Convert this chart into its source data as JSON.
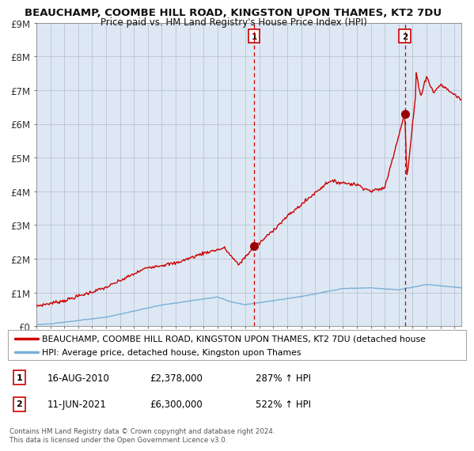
{
  "title": "BEAUCHAMP, COOMBE HILL ROAD, KINGSTON UPON THAMES, KT2 7DU",
  "subtitle": "Price paid vs. HM Land Registry's House Price Index (HPI)",
  "ylim": [
    0,
    9000000
  ],
  "yticks": [
    0,
    1000000,
    2000000,
    3000000,
    4000000,
    5000000,
    6000000,
    7000000,
    8000000,
    9000000
  ],
  "ytick_labels": [
    "£0",
    "£1M",
    "£2M",
    "£3M",
    "£4M",
    "£5M",
    "£6M",
    "£7M",
    "£8M",
    "£9M"
  ],
  "xmin": 1995,
  "xmax": 2025.5,
  "background_color": "#ffffff",
  "plot_bg_color": "#dde8f4",
  "grid_color": "#b0b8c8",
  "hpi_line_color": "#7ab0d8",
  "price_line_color": "#cc0000",
  "marker_color": "#990000",
  "vline_color": "#cc0000",
  "sale1_x": 2010.62,
  "sale1_y": 2378000,
  "sale2_x": 2021.44,
  "sale2_y": 6300000,
  "legend_price_label": "BEAUCHAMP, COOMBE HILL ROAD, KINGSTON UPON THAMES, KT2 7DU (detached house",
  "legend_hpi_label": "HPI: Average price, detached house, Kingston upon Thames",
  "annotation1_date": "16-AUG-2010",
  "annotation1_price": "£2,378,000",
  "annotation1_hpi": "287% ↑ HPI",
  "annotation2_date": "11-JUN-2021",
  "annotation2_price": "£6,300,000",
  "annotation2_hpi": "522% ↑ HPI",
  "footer": "Contains HM Land Registry data © Crown copyright and database right 2024.\nThis data is licensed under the Open Government Licence v3.0."
}
